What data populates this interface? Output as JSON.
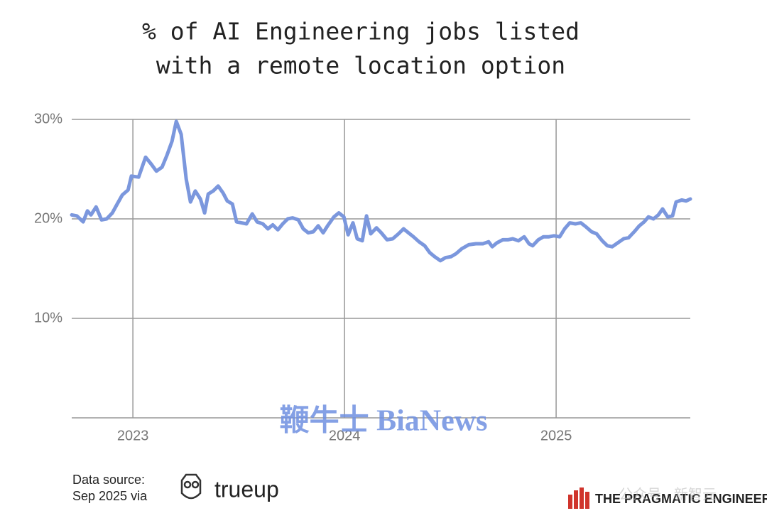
{
  "chart_data": {
    "type": "line",
    "title": [
      "% of AI Engineering jobs listed",
      "with a remote location option"
    ],
    "x": [
      2022.711,
      2022.735,
      2022.765,
      2022.785,
      2022.802,
      2022.826,
      2022.852,
      2022.876,
      2022.903,
      2022.926,
      2022.95,
      2022.977,
      2022.993,
      2023.027,
      2023.06,
      2023.087,
      2023.111,
      2023.138,
      2023.161,
      2023.185,
      2023.205,
      2023.228,
      2023.252,
      2023.272,
      2023.295,
      2023.319,
      2023.339,
      2023.356,
      2023.379,
      2023.403,
      2023.426,
      2023.446,
      2023.47,
      2023.49,
      2023.513,
      2023.537,
      2023.564,
      2023.587,
      2023.614,
      2023.638,
      2023.661,
      2023.685,
      2023.708,
      2023.732,
      2023.755,
      2023.782,
      2023.805,
      2023.829,
      2023.852,
      2023.876,
      2023.899,
      2023.923,
      2023.95,
      2023.973,
      2023.997,
      2024.017,
      2024.04,
      2024.06,
      2024.084,
      2024.104,
      2024.124,
      2024.151,
      2024.174,
      2024.201,
      2024.228,
      2024.255,
      2024.279,
      2024.302,
      2024.326,
      2024.352,
      2024.379,
      2024.403,
      2024.426,
      2024.453,
      2024.477,
      2024.503,
      2024.527,
      2024.554,
      2024.587,
      2024.621,
      2024.654,
      2024.681,
      2024.698,
      2024.721,
      2024.748,
      2024.772,
      2024.795,
      2024.822,
      2024.849,
      2024.872,
      2024.889,
      2024.916,
      2024.94,
      2024.966,
      2024.99,
      2025.017,
      2025.04,
      2025.064,
      2025.091,
      2025.117,
      2025.141,
      2025.168,
      2025.191,
      2025.218,
      2025.242,
      2025.265,
      2025.292,
      2025.319,
      2025.342,
      2025.369,
      2025.393,
      2025.416,
      2025.436,
      2025.46,
      2025.483,
      2025.503,
      2025.527,
      2025.55,
      2025.567,
      2025.594,
      2025.614,
      2025.634
    ],
    "values": [
      20.4,
      20.3,
      19.7,
      20.8,
      20.4,
      21.2,
      19.9,
      20.0,
      20.6,
      21.5,
      22.4,
      22.9,
      24.3,
      24.2,
      26.2,
      25.5,
      24.8,
      25.2,
      26.4,
      27.8,
      29.8,
      28.5,
      24.0,
      21.7,
      22.8,
      22.0,
      20.6,
      22.5,
      22.8,
      23.3,
      22.6,
      21.8,
      21.5,
      19.7,
      19.6,
      19.5,
      20.5,
      19.7,
      19.5,
      19.0,
      19.4,
      18.9,
      19.5,
      20.0,
      20.1,
      19.9,
      19.0,
      18.6,
      18.7,
      19.3,
      18.6,
      19.4,
      20.2,
      20.6,
      20.2,
      18.4,
      19.6,
      18.0,
      17.8,
      20.3,
      18.5,
      19.1,
      18.6,
      17.9,
      18.0,
      18.5,
      19.0,
      18.6,
      18.2,
      17.7,
      17.3,
      16.6,
      16.2,
      15.8,
      16.1,
      16.2,
      16.5,
      17.0,
      17.4,
      17.5,
      17.5,
      17.7,
      17.2,
      17.6,
      17.9,
      17.9,
      18.0,
      17.8,
      18.2,
      17.5,
      17.3,
      17.9,
      18.2,
      18.2,
      18.3,
      18.2,
      19.0,
      19.6,
      19.5,
      19.6,
      19.2,
      18.7,
      18.5,
      17.8,
      17.3,
      17.2,
      17.6,
      18.0,
      18.1,
      18.7,
      19.3,
      19.7,
      20.2,
      20.0,
      20.4,
      21.0,
      20.2,
      20.3,
      21.7,
      21.9,
      21.8,
      22.0
    ],
    "color": "#7b97dd",
    "xlim": [
      2022.711,
      2025.634
    ],
    "xticks": [
      2023,
      2024,
      2025
    ],
    "ylim": [
      0,
      30
    ],
    "yticks": [
      {
        "value": 10,
        "label": "10%"
      },
      {
        "value": 20,
        "label": "20%"
      },
      {
        "value": 30,
        "label": "30%"
      }
    ],
    "grid": true
  },
  "footer": {
    "source": [
      "Data source:",
      "Sep 2025 via"
    ],
    "logo": "trueup",
    "brand": "THE PRAGMATIC ENGINEER",
    "watermarks": [
      "鞭牛士 BiaNews",
      "公众号 · 新智元"
    ]
  }
}
